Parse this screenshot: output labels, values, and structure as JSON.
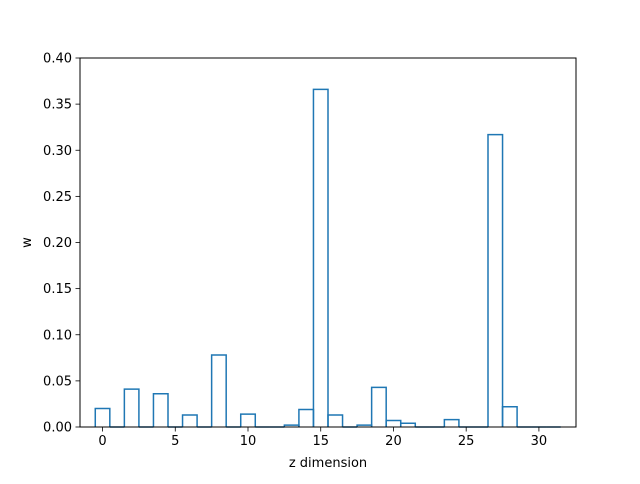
{
  "chart_data": {
    "type": "bar",
    "style": "step-histogram",
    "xlabel": "z dimension",
    "ylabel": "w",
    "x": [
      0,
      1,
      2,
      3,
      4,
      5,
      6,
      7,
      8,
      9,
      10,
      11,
      12,
      13,
      14,
      15,
      16,
      17,
      18,
      19,
      20,
      21,
      22,
      23,
      24,
      25,
      26,
      27,
      28,
      29,
      30,
      31
    ],
    "values": [
      0.02,
      0.0,
      0.041,
      0.0,
      0.036,
      0.0,
      0.013,
      0.0,
      0.078,
      0.0,
      0.014,
      0.0,
      0.0,
      0.002,
      0.019,
      0.366,
      0.013,
      0.0,
      0.002,
      0.043,
      0.007,
      0.004,
      0.0,
      0.0,
      0.008,
      0.0,
      0.0,
      0.317,
      0.022,
      0.0,
      0.0,
      0.0
    ],
    "xlim": [
      -1.55,
      32.55
    ],
    "ylim": [
      0,
      0.4
    ],
    "xticks": [
      0,
      5,
      10,
      15,
      20,
      25,
      30
    ],
    "yticks": [
      0.0,
      0.05,
      0.1,
      0.15,
      0.2,
      0.25,
      0.3,
      0.35,
      0.4
    ],
    "xtick_labels": [
      "0",
      "5",
      "10",
      "15",
      "20",
      "25",
      "30"
    ],
    "ytick_labels": [
      "0.00",
      "0.05",
      "0.10",
      "0.15",
      "0.20",
      "0.25",
      "0.30",
      "0.35",
      "0.40"
    ],
    "grid": false,
    "line_color": "#1f77b4"
  }
}
